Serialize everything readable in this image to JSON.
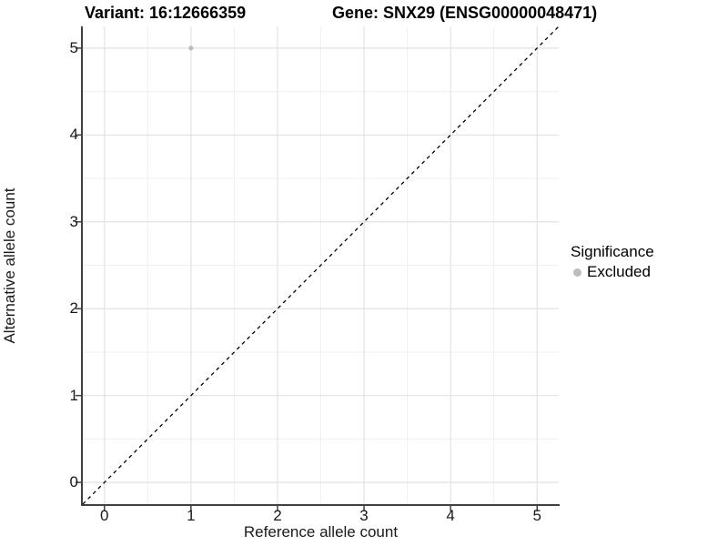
{
  "titles": {
    "variant": "Variant: 16:12666359",
    "gene": "Gene: SNX29 (ENSG00000048471)"
  },
  "axes": {
    "x": {
      "label": "Reference allele count",
      "tick_labels": [
        "0",
        "1",
        "2",
        "3",
        "4",
        "5"
      ]
    },
    "y": {
      "label": "Alternative allele count",
      "tick_labels": [
        "0",
        "1",
        "2",
        "3",
        "4",
        "5"
      ]
    }
  },
  "legend": {
    "title": "Significance",
    "items": [
      {
        "label": "Excluded",
        "color": "#bdbdbd"
      }
    ]
  },
  "colors": {
    "point": "#bdbdbd",
    "grid_major": "#e2e2e2",
    "grid_minor": "#f0f0f0",
    "axis_line": "#404040",
    "reference_line": "#000000",
    "tick_mark": "#404040"
  },
  "chart_data": {
    "type": "scatter",
    "title": "Variant: 16:12666359 | Gene: SNX29 (ENSG00000048471)",
    "xlabel": "Reference allele count",
    "ylabel": "Alternative allele count",
    "xlim": [
      -0.25,
      5.25
    ],
    "ylim": [
      -0.25,
      5.25
    ],
    "x_ticks": [
      0,
      1,
      2,
      3,
      4,
      5
    ],
    "y_ticks": [
      0,
      1,
      2,
      3,
      4,
      5
    ],
    "grid": "on",
    "legend_position": "right",
    "series": [
      {
        "name": "Excluded",
        "color": "#bdbdbd",
        "points": [
          {
            "x": 1,
            "y": 5
          }
        ]
      }
    ],
    "reference_line": {
      "type": "identity y=x",
      "from": [
        -0.25,
        -0.25
      ],
      "to": [
        5.25,
        5.25
      ],
      "style": "dashed",
      "color": "#000000"
    }
  }
}
